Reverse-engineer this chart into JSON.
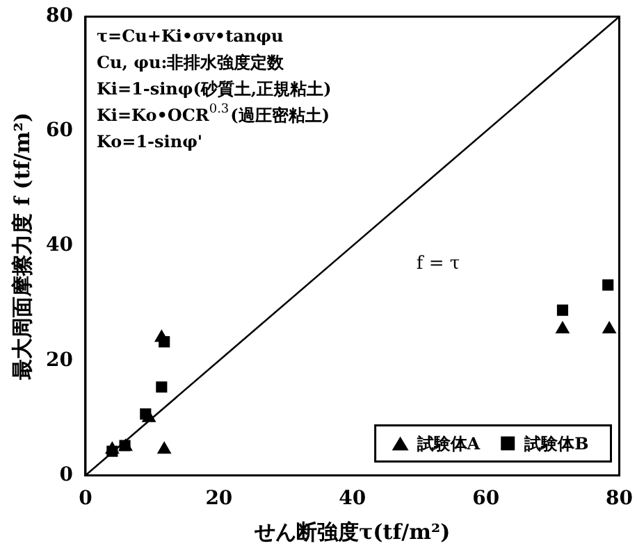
{
  "chart_data": {
    "type": "scatter",
    "xlabel": "せん断強度τ(tf/m²)",
    "ylabel": "最大周面摩擦力度 f (tf/m²)",
    "xlim": [
      0,
      80
    ],
    "ylim": [
      0,
      80
    ],
    "xticks": [
      0,
      20,
      40,
      60,
      80
    ],
    "yticks": [
      0,
      20,
      40,
      60,
      80
    ],
    "grid": false,
    "legend": "bottom right",
    "series": [
      {
        "name": "試験体A",
        "color": "#000000",
        "marker": "triangle",
        "x": [
          4,
          6,
          9.5,
          11.4,
          11.8,
          71.5,
          78.5
        ],
        "values": [
          4.5,
          5,
          10,
          24,
          4.5,
          25.5,
          25.5
        ]
      },
      {
        "name": "試験体B",
        "color": "#000000",
        "marker": "square",
        "x": [
          4,
          5.9,
          9,
          11.4,
          11.8,
          71.5,
          78.3
        ],
        "values": [
          4.2,
          5.2,
          10.7,
          15.4,
          23.3,
          28.8,
          33.2
        ]
      },
      {
        "type": "line",
        "color": "#000000",
        "marker": "none",
        "x": [
          0,
          80
        ],
        "values": [
          0,
          80
        ]
      }
    ],
    "annotations": [
      "τ=Cu+Ki•σv•tanφu",
      "Cu, φu:非排水強度定数",
      "Ki=1-sinφ(砂質土,正規粘土)",
      "Ki=Ko•OCR$^{0.3}$(過圧密粘土)",
      "Ko=1-sinφ'",
      "f = τ"
    ]
  }
}
